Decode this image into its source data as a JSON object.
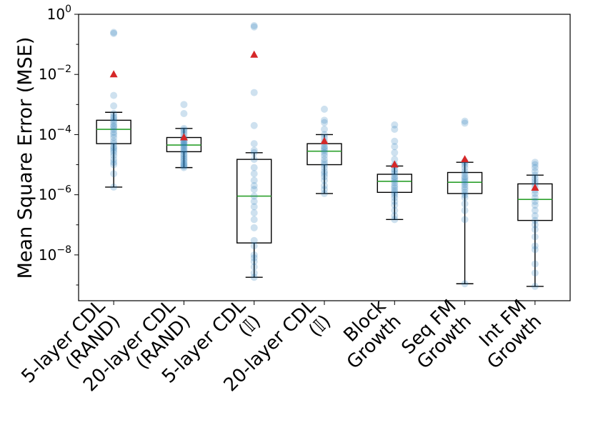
{
  "chart_data": {
    "type": "box",
    "title": "",
    "xlabel": "",
    "ylabel": "Mean Square Error (MSE)",
    "yscale": "log",
    "ylim": [
      3e-10,
      1.0
    ],
    "yticks": [
      {
        "value": 1e-08,
        "base": "10",
        "exp": "−8"
      },
      {
        "value": 1e-06,
        "base": "10",
        "exp": "−6"
      },
      {
        "value": 0.0001,
        "base": "10",
        "exp": "−4"
      },
      {
        "value": 0.01,
        "base": "10",
        "exp": "−2"
      },
      {
        "value": 1,
        "base": "10",
        "exp": "0"
      }
    ],
    "categories": [
      {
        "lines": [
          "5-layer CDL",
          "(RAND)"
        ]
      },
      {
        "lines": [
          "20-layer CDL",
          "(RAND)"
        ]
      },
      {
        "lines": [
          "5-layer CDL",
          "(𝕀)"
        ]
      },
      {
        "lines": [
          "20-layer CDL",
          "(𝕀)"
        ]
      },
      {
        "lines": [
          "Block",
          "Growth"
        ]
      },
      {
        "lines": [
          "Seq FM",
          "Growth"
        ]
      },
      {
        "lines": [
          "Int FM",
          "Growth"
        ]
      }
    ],
    "boxes": [
      {
        "q1": 5e-05,
        "median": 0.00015,
        "q3": 0.0003,
        "whisker_low": 1.8e-06,
        "whisker_high": 0.00055,
        "mean": 0.01,
        "points": [
          0.25,
          0.23,
          0.002,
          0.0009,
          0.0005,
          0.0004,
          0.00035,
          0.0003,
          0.00025,
          0.0002,
          0.00018,
          0.00015,
          0.00012,
          0.0001,
          8e-05,
          6e-05,
          5e-05,
          4e-05,
          3.5e-05,
          3e-05,
          2.5e-05,
          2e-05,
          1.5e-05,
          1.2e-05,
          1e-05,
          5e-06,
          1.8e-06
        ]
      },
      {
        "q1": 2.7e-05,
        "median": 4.5e-05,
        "q3": 8e-05,
        "whisker_low": 8e-06,
        "whisker_high": 0.00016,
        "mean": 8e-05,
        "points": [
          0.001,
          0.0005,
          0.00016,
          0.00014,
          0.00012,
          0.0001,
          8e-05,
          7e-05,
          6e-05,
          5.5e-05,
          5e-05,
          4.5e-05,
          4e-05,
          3.5e-05,
          3e-05,
          2.7e-05,
          2.3e-05,
          2e-05,
          1.7e-05,
          1.5e-05,
          1.3e-05,
          1.1e-05,
          1e-05,
          9e-06,
          8e-06
        ]
      },
      {
        "q1": 2.5e-08,
        "median": 9e-07,
        "q3": 1.5e-05,
        "whisker_low": 1.8e-09,
        "whisker_high": 2.5e-05,
        "mean": 0.045,
        "points": [
          0.42,
          0.38,
          0.0025,
          0.0002,
          5e-05,
          3e-05,
          2.5e-05,
          1.5e-05,
          8e-06,
          5e-06,
          3e-06,
          2e-06,
          1.5e-06,
          9e-07,
          6e-07,
          4e-07,
          2.5e-07,
          1.5e-07,
          8e-08,
          3e-08,
          2e-08,
          1e-08,
          8e-09,
          6e-09,
          4e-09,
          2.5e-09,
          1.8e-09
        ]
      },
      {
        "q1": 1e-05,
        "median": 2.8e-05,
        "q3": 5e-05,
        "whisker_low": 1.1e-06,
        "whisker_high": 0.0001,
        "mean": 6e-05,
        "points": [
          0.0007,
          0.0003,
          0.00025,
          0.00015,
          0.0001,
          8e-05,
          6e-05,
          5e-05,
          4e-05,
          3.5e-05,
          3e-05,
          2.5e-05,
          2e-05,
          1.5e-05,
          1.2e-05,
          1e-05,
          8e-06,
          6e-06,
          5e-06,
          4e-06,
          3e-06,
          2e-06,
          1.5e-06,
          1.1e-06
        ]
      },
      {
        "q1": 1.2e-06,
        "median": 2.8e-06,
        "q3": 4.8e-06,
        "whisker_low": 1.5e-07,
        "whisker_high": 9e-06,
        "mean": 1e-05,
        "points": [
          0.00021,
          0.00015,
          6e-05,
          4e-05,
          2.5e-05,
          1.5e-05,
          1e-05,
          9e-06,
          7e-06,
          6e-06,
          5e-06,
          4e-06,
          3.5e-06,
          3e-06,
          2.5e-06,
          2e-06,
          1.7e-06,
          1.4e-06,
          1.2e-06,
          1e-06,
          8e-07,
          6e-07,
          4.5e-07,
          3e-07,
          2e-07,
          1.5e-07
        ]
      },
      {
        "q1": 1.1e-06,
        "median": 2.6e-06,
        "q3": 5.5e-06,
        "whisker_low": 1.1e-09,
        "whisker_high": 1.2e-05,
        "mean": 1.5e-05,
        "points": [
          0.00028,
          0.00024,
          1.3e-05,
          1.2e-05,
          1e-05,
          8e-06,
          6e-06,
          5e-06,
          4e-06,
          3.5e-06,
          3e-06,
          2.6e-06,
          2.2e-06,
          1.8e-06,
          1.5e-06,
          1.2e-06,
          1e-06,
          8e-07,
          5e-07,
          3e-07,
          1.5e-07,
          1.1e-09
        ]
      },
      {
        "q1": 1.4e-07,
        "median": 7e-07,
        "q3": 2.3e-06,
        "whisker_low": 9e-10,
        "whisker_high": 4.5e-06,
        "mean": 1.7e-06,
        "points": [
          1.2e-05,
          1e-05,
          8e-06,
          6e-06,
          4.5e-06,
          3.5e-06,
          2.8e-06,
          2.3e-06,
          1.8e-06,
          1.4e-06,
          1.1e-06,
          8e-07,
          6e-07,
          4.5e-07,
          3e-07,
          2e-07,
          1.4e-07,
          1e-07,
          7e-08,
          4e-08,
          2e-08,
          1.5e-08,
          5e-09,
          2.5e-09,
          9e-10
        ]
      }
    ],
    "colors": {
      "points": "#1f77b4",
      "median": "#2ca02c",
      "mean": "#d62728",
      "box": "#000000"
    },
    "grid": false,
    "legend": "none"
  }
}
